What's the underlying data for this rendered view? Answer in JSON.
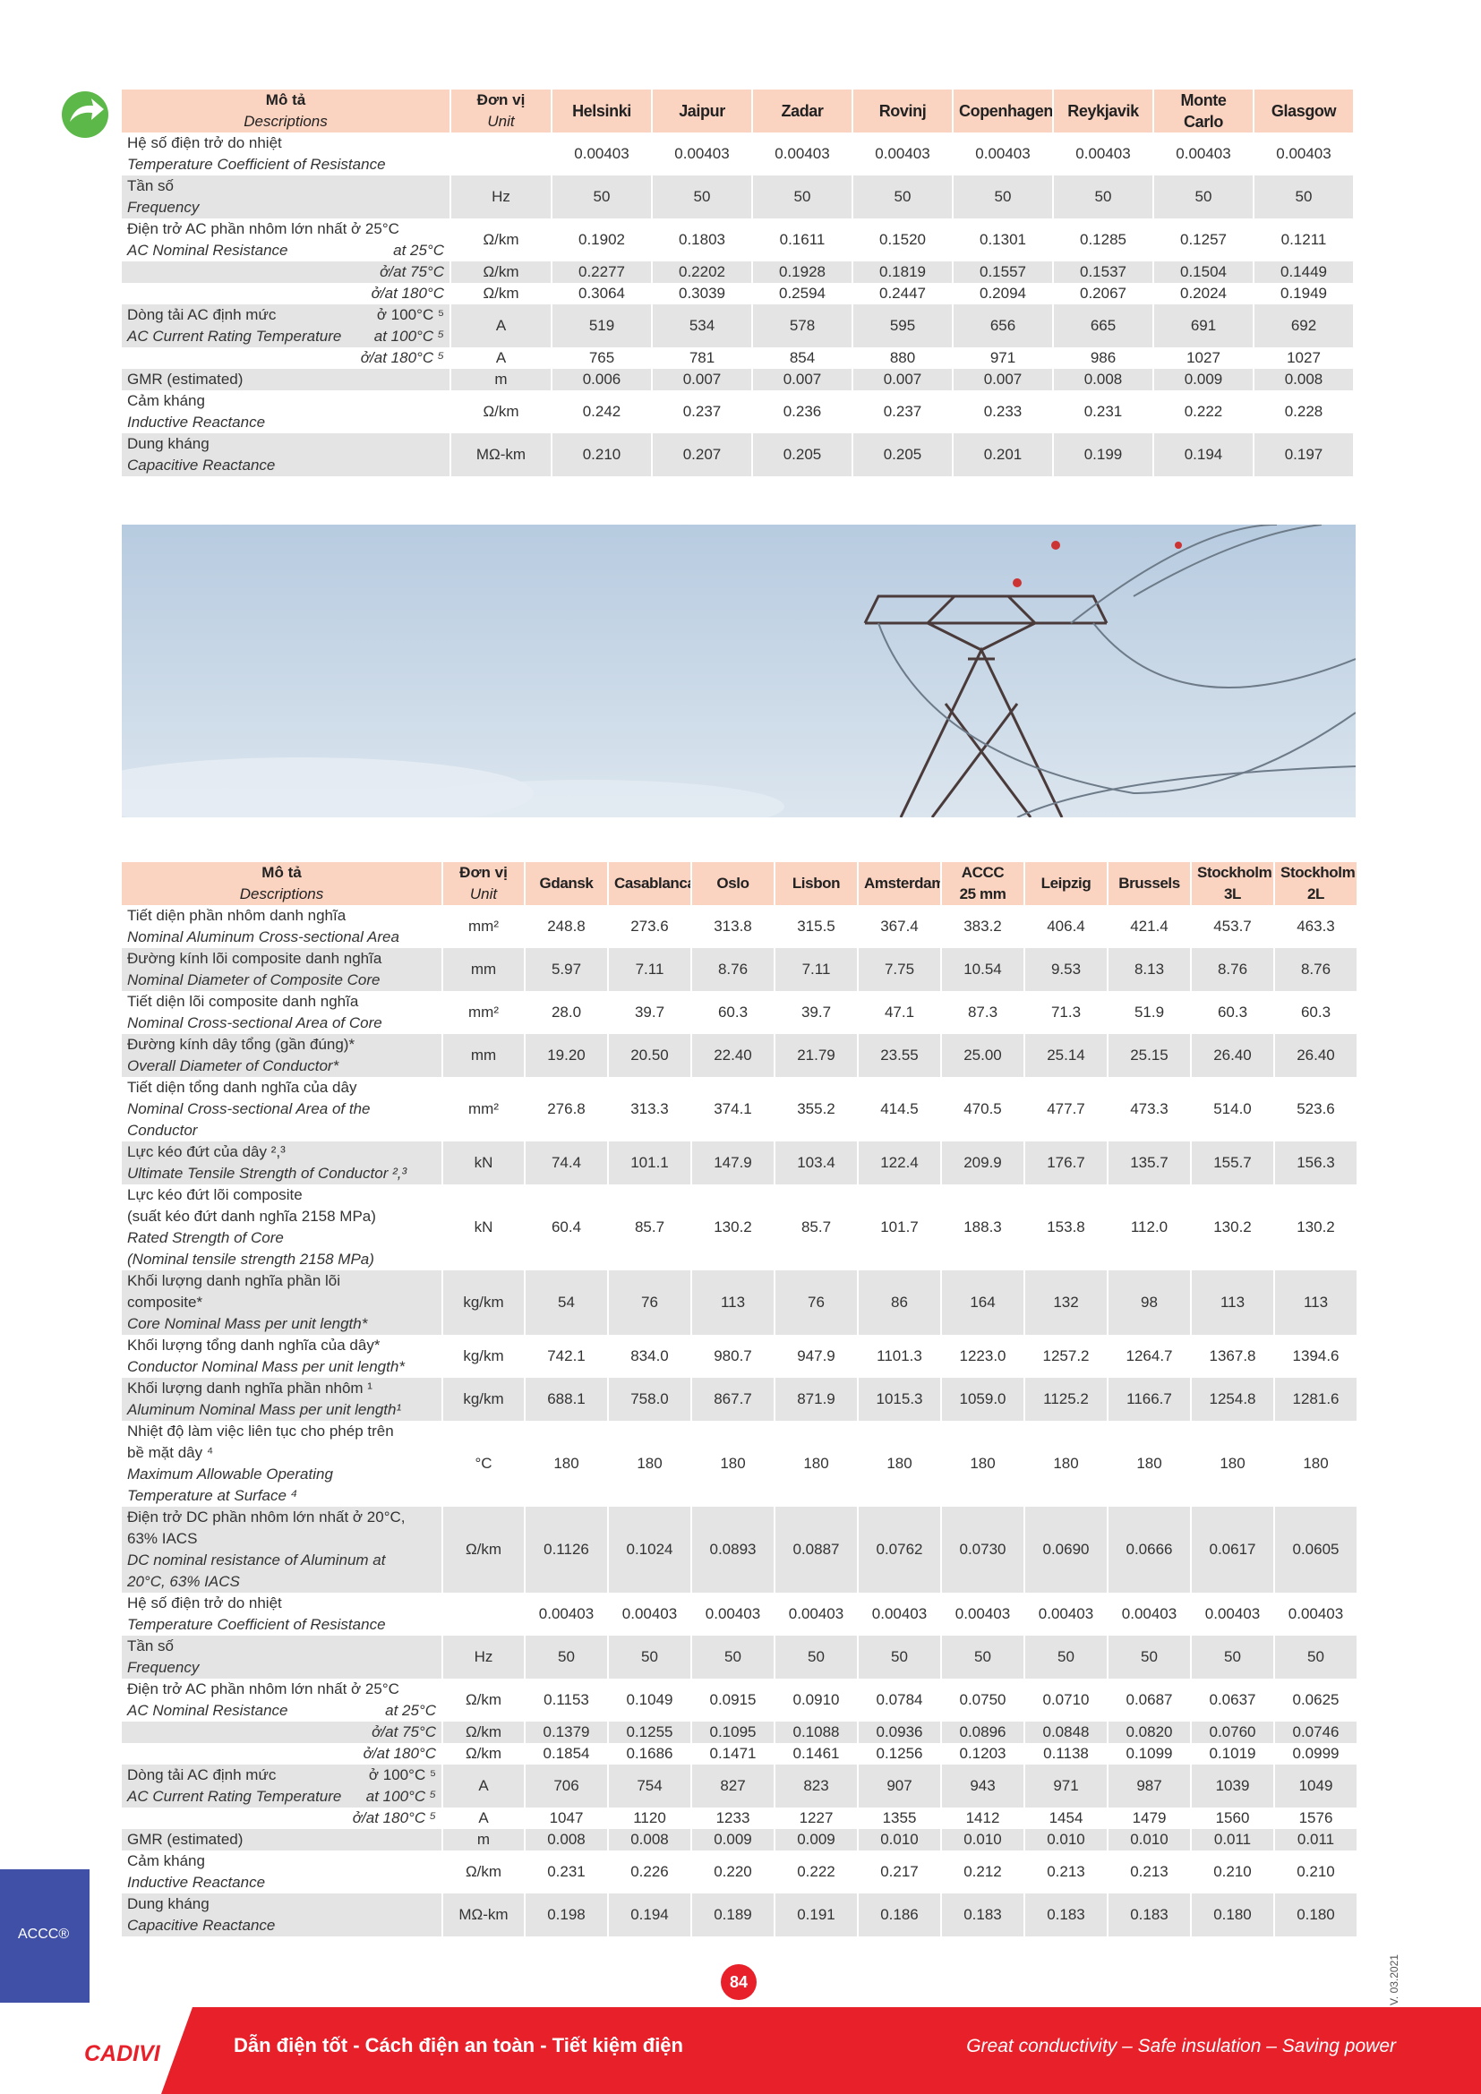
{
  "side_label": "ACCC®",
  "page_number": "84",
  "version": "V. 03.2021",
  "footer": {
    "brand": "CADIVI",
    "slogan_vi": "Dẫn điện tốt - Cách điện an toàn - Tiết kiệm điện",
    "slogan_en": "Great conductivity – Safe insulation – Saving power"
  },
  "tables": [
    {
      "header": {
        "desc_vi": "Mô tả",
        "desc_en": "Descriptions",
        "unit_vi": "Đơn vị",
        "unit_en": "Unit",
        "columns": [
          [
            "Helsinki"
          ],
          [
            "Jaipur"
          ],
          [
            "Zadar"
          ],
          [
            "Rovinj"
          ],
          [
            "Copenhagen"
          ],
          [
            "Reykjavik"
          ],
          [
            "Monte",
            "Carlo"
          ],
          [
            "Glasgow"
          ]
        ]
      },
      "rows": [
        {
          "vi": [
            "Hệ số điện trở do nhiệt"
          ],
          "en": [
            "Temperature Coefficient of Resistance"
          ],
          "unit": "",
          "values": [
            "0.00403",
            "0.00403",
            "0.00403",
            "0.00403",
            "0.00403",
            "0.00403",
            "0.00403",
            "0.00403"
          ]
        },
        {
          "vi": [
            "Tần số"
          ],
          "en": [
            "Frequency"
          ],
          "unit": "Hz",
          "values": [
            "50",
            "50",
            "50",
            "50",
            "50",
            "50",
            "50",
            "50"
          ]
        },
        {
          "vi": [
            "Điện trở AC phần nhôm lớn nhất ở 25°C"
          ],
          "en": [
            "AC Nominal Resistance"
          ],
          "en_note": "at 25°C",
          "unit": "Ω/km",
          "values": [
            "0.1902",
            "0.1803",
            "0.1611",
            "0.1520",
            "0.1301",
            "0.1285",
            "0.1257",
            "0.1211"
          ]
        },
        {
          "sub": "ở/at 75°C",
          "unit": "Ω/km",
          "values": [
            "0.2277",
            "0.2202",
            "0.1928",
            "0.1819",
            "0.1557",
            "0.1537",
            "0.1504",
            "0.1449"
          ]
        },
        {
          "sub": "ở/at 180°C",
          "unit": "Ω/km",
          "values": [
            "0.3064",
            "0.3039",
            "0.2594",
            "0.2447",
            "0.2094",
            "0.2067",
            "0.2024",
            "0.1949"
          ]
        },
        {
          "vi": [
            "Dòng tải AC định mức"
          ],
          "vi_note": "ở 100°C ⁵",
          "en": [
            "AC Current Rating Temperature"
          ],
          "en_note": "at 100°C ⁵",
          "unit": "A",
          "values": [
            "519",
            "534",
            "578",
            "595",
            "656",
            "665",
            "691",
            "692"
          ]
        },
        {
          "sub": "ở/at 180°C ⁵",
          "unit": "A",
          "values": [
            "765",
            "781",
            "854",
            "880",
            "971",
            "986",
            "1027",
            "1027"
          ]
        },
        {
          "vi": [
            "GMR (estimated)"
          ],
          "unit": "m",
          "values": [
            "0.006",
            "0.007",
            "0.007",
            "0.007",
            "0.007",
            "0.008",
            "0.009",
            "0.008"
          ]
        },
        {
          "vi": [
            "Cảm kháng"
          ],
          "en": [
            "Inductive Reactance"
          ],
          "unit": "Ω/km",
          "values": [
            "0.242",
            "0.237",
            "0.236",
            "0.237",
            "0.233",
            "0.231",
            "0.222",
            "0.228"
          ]
        },
        {
          "vi": [
            "Dung kháng"
          ],
          "en": [
            "Capacitive Reactance"
          ],
          "unit": "MΩ-km",
          "values": [
            "0.210",
            "0.207",
            "0.205",
            "0.205",
            "0.201",
            "0.199",
            "0.194",
            "0.197"
          ]
        }
      ]
    },
    {
      "header": {
        "desc_vi": "Mô tả",
        "desc_en": "Descriptions",
        "unit_vi": "Đơn vị",
        "unit_en": "Unit",
        "columns": [
          [
            "Gdansk"
          ],
          [
            "Casablanca"
          ],
          [
            "Oslo"
          ],
          [
            "Lisbon"
          ],
          [
            "Amsterdam"
          ],
          [
            "ACCC",
            "25 mm"
          ],
          [
            "Leipzig"
          ],
          [
            "Brussels"
          ],
          [
            "Stockholm",
            "3L"
          ],
          [
            "Stockholm",
            "2L"
          ]
        ]
      },
      "rows": [
        {
          "vi": [
            "Tiết diện phần nhôm danh nghĩa"
          ],
          "en": [
            "Nominal Aluminum Cross-sectional Area"
          ],
          "unit": "mm²",
          "values": [
            "248.8",
            "273.6",
            "313.8",
            "315.5",
            "367.4",
            "383.2",
            "406.4",
            "421.4",
            "453.7",
            "463.3"
          ]
        },
        {
          "vi": [
            "Đường kính lõi composite danh nghĩa"
          ],
          "en": [
            "Nominal Diameter of Composite Core"
          ],
          "unit": "mm",
          "values": [
            "5.97",
            "7.11",
            "8.76",
            "7.11",
            "7.75",
            "10.54",
            "9.53",
            "8.13",
            "8.76",
            "8.76"
          ]
        },
        {
          "vi": [
            "Tiết diện lõi composite danh nghĩa"
          ],
          "en": [
            "Nominal Cross-sectional Area of Core"
          ],
          "unit": "mm²",
          "values": [
            "28.0",
            "39.7",
            "60.3",
            "39.7",
            "47.1",
            "87.3",
            "71.3",
            "51.9",
            "60.3",
            "60.3"
          ]
        },
        {
          "vi": [
            "Đường kính dây tổng (gần đúng)*"
          ],
          "en": [
            "Overall Diameter of Conductor*"
          ],
          "unit": "mm",
          "values": [
            "19.20",
            "20.50",
            "22.40",
            "21.79",
            "23.55",
            "25.00",
            "25.14",
            "25.15",
            "26.40",
            "26.40"
          ]
        },
        {
          "vi": [
            "Tiết diện tổng danh nghĩa của dây"
          ],
          "en": [
            "Nominal Cross-sectional Area of the",
            "Conductor"
          ],
          "unit": "mm²",
          "values": [
            "276.8",
            "313.3",
            "374.1",
            "355.2",
            "414.5",
            "470.5",
            "477.7",
            "473.3",
            "514.0",
            "523.6"
          ]
        },
        {
          "vi": [
            "Lực kéo đứt của dây ²,³"
          ],
          "en": [
            "Ultimate Tensile Strength of Conductor ²,³"
          ],
          "unit": "kN",
          "values": [
            "74.4",
            "101.1",
            "147.9",
            "103.4",
            "122.4",
            "209.9",
            "176.7",
            "135.7",
            "155.7",
            "156.3"
          ]
        },
        {
          "vi": [
            "Lực kéo đứt lõi composite",
            "(suất kéo đứt danh nghĩa 2158 MPa)"
          ],
          "en": [
            "Rated Strength of Core",
            "(Nominal tensile strength 2158 MPa)"
          ],
          "unit": "kN",
          "values": [
            "60.4",
            "85.7",
            "130.2",
            "85.7",
            "101.7",
            "188.3",
            "153.8",
            "112.0",
            "130.2",
            "130.2"
          ]
        },
        {
          "vi": [
            "Khối lượng danh nghĩa phần lõi",
            "composite*"
          ],
          "en": [
            "Core Nominal Mass per unit length*"
          ],
          "unit": "kg/km",
          "values": [
            "54",
            "76",
            "113",
            "76",
            "86",
            "164",
            "132",
            "98",
            "113",
            "113"
          ]
        },
        {
          "vi": [
            "Khối lượng tổng danh nghĩa của dây*"
          ],
          "en": [
            "Conductor Nominal Mass per unit length*"
          ],
          "unit": "kg/km",
          "values": [
            "742.1",
            "834.0",
            "980.7",
            "947.9",
            "1101.3",
            "1223.0",
            "1257.2",
            "1264.7",
            "1367.8",
            "1394.6"
          ]
        },
        {
          "vi": [
            "Khối lượng danh nghĩa phần nhôm ¹"
          ],
          "en": [
            "Aluminum Nominal Mass per unit length¹"
          ],
          "unit": "kg/km",
          "values": [
            "688.1",
            "758.0",
            "867.7",
            "871.9",
            "1015.3",
            "1059.0",
            "1125.2",
            "1166.7",
            "1254.8",
            "1281.6"
          ]
        },
        {
          "vi": [
            "Nhiệt độ làm việc liên tục cho phép trên",
            "bề mặt dây ⁴"
          ],
          "en": [
            "Maximum Allowable Operating",
            "Temperature at Surface ⁴"
          ],
          "unit": "°C",
          "values": [
            "180",
            "180",
            "180",
            "180",
            "180",
            "180",
            "180",
            "180",
            "180",
            "180"
          ]
        },
        {
          "vi": [
            "Điện trở DC phần nhôm lớn nhất ở 20°C,",
            "63% IACS"
          ],
          "en": [
            "DC nominal resistance of Aluminum at",
            "20°C, 63% IACS"
          ],
          "unit": "Ω/km",
          "values": [
            "0.1126",
            "0.1024",
            "0.0893",
            "0.0887",
            "0.0762",
            "0.0730",
            "0.0690",
            "0.0666",
            "0.0617",
            "0.0605"
          ]
        },
        {
          "vi": [
            "Hệ số điện trở do nhiệt"
          ],
          "en": [
            "Temperature Coefficient of Resistance"
          ],
          "unit": "",
          "values": [
            "0.00403",
            "0.00403",
            "0.00403",
            "0.00403",
            "0.00403",
            "0.00403",
            "0.00403",
            "0.00403",
            "0.00403",
            "0.00403"
          ]
        },
        {
          "vi": [
            "Tần số"
          ],
          "en": [
            "Frequency"
          ],
          "unit": "Hz",
          "values": [
            "50",
            "50",
            "50",
            "50",
            "50",
            "50",
            "50",
            "50",
            "50",
            "50"
          ]
        },
        {
          "vi": [
            "Điện trở AC phần nhôm lớn nhất ở 25°C"
          ],
          "en": [
            "AC Nominal Resistance"
          ],
          "en_note": "at 25°C",
          "unit": "Ω/km",
          "values": [
            "0.1153",
            "0.1049",
            "0.0915",
            "0.0910",
            "0.0784",
            "0.0750",
            "0.0710",
            "0.0687",
            "0.0637",
            "0.0625"
          ]
        },
        {
          "sub": "ở/at 75°C",
          "unit": "Ω/km",
          "values": [
            "0.1379",
            "0.1255",
            "0.1095",
            "0.1088",
            "0.0936",
            "0.0896",
            "0.0848",
            "0.0820",
            "0.0760",
            "0.0746"
          ]
        },
        {
          "sub": "ở/at 180°C",
          "unit": "Ω/km",
          "values": [
            "0.1854",
            "0.1686",
            "0.1471",
            "0.1461",
            "0.1256",
            "0.1203",
            "0.1138",
            "0.1099",
            "0.1019",
            "0.0999"
          ]
        },
        {
          "vi": [
            "Dòng tải AC định mức"
          ],
          "vi_note": "ở 100°C ⁵",
          "en": [
            "AC Current Rating Temperature"
          ],
          "en_note": "at 100°C ⁵",
          "unit": "A",
          "values": [
            "706",
            "754",
            "827",
            "823",
            "907",
            "943",
            "971",
            "987",
            "1039",
            "1049"
          ]
        },
        {
          "sub": "ở/at 180°C ⁵",
          "unit": "A",
          "values": [
            "1047",
            "1120",
            "1233",
            "1227",
            "1355",
            "1412",
            "1454",
            "1479",
            "1560",
            "1576"
          ]
        },
        {
          "vi": [
            "GMR (estimated)"
          ],
          "unit": "m",
          "values": [
            "0.008",
            "0.008",
            "0.009",
            "0.009",
            "0.010",
            "0.010",
            "0.010",
            "0.010",
            "0.011",
            "0.011"
          ]
        },
        {
          "vi": [
            "Cảm kháng"
          ],
          "en": [
            "Inductive Reactance"
          ],
          "unit": "Ω/km",
          "values": [
            "0.231",
            "0.226",
            "0.220",
            "0.222",
            "0.217",
            "0.212",
            "0.213",
            "0.213",
            "0.210",
            "0.210"
          ]
        },
        {
          "vi": [
            "Dung kháng"
          ],
          "en": [
            "Capacitive Reactance"
          ],
          "unit": "MΩ-km",
          "values": [
            "0.198",
            "0.194",
            "0.189",
            "0.191",
            "0.186",
            "0.183",
            "0.183",
            "0.183",
            "0.180",
            "0.180"
          ]
        }
      ]
    }
  ]
}
